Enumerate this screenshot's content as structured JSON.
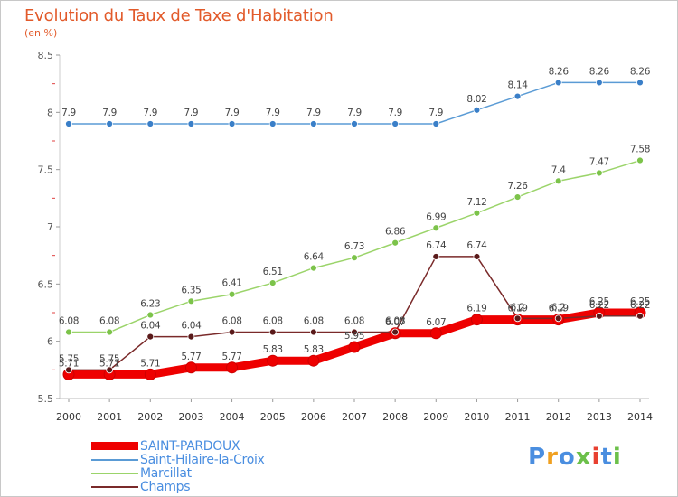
{
  "title": "Evolution du Taux de Taxe d'Habitation",
  "unit_label": "(en %)",
  "logo_text": "Proxiti",
  "colors": {
    "title": "#e25a2a",
    "legend_text": "#4a8ee0",
    "saint_pardoux": "#ee0000",
    "saint_hilaire": "#5a9bd5",
    "marcillat": "#9bd46a",
    "champs": "#7a2a2a"
  },
  "chart_data": {
    "type": "line",
    "title": "Evolution du Taux de Taxe d'Habitation",
    "ylabel": "(en %)",
    "xlabel": "",
    "ylim": [
      5.5,
      8.5
    ],
    "yticks": [
      "5.5",
      "6",
      "6.5",
      "7",
      "7.5",
      "8",
      "8.5"
    ],
    "categories": [
      "2000",
      "2001",
      "2002",
      "2003",
      "2004",
      "2005",
      "2006",
      "2007",
      "2008",
      "2009",
      "2010",
      "2011",
      "2012",
      "2013",
      "2014"
    ],
    "grid": false,
    "legend_position": "bottom-left",
    "series": [
      {
        "name": "SAINT-PARDOUX",
        "values": [
          5.71,
          5.71,
          5.71,
          5.77,
          5.77,
          5.83,
          5.83,
          5.95,
          6.07,
          6.07,
          6.19,
          6.19,
          6.19,
          6.25,
          6.25
        ],
        "labels": [
          "5.71",
          "5.71",
          "5.71",
          "5.77",
          "5.77",
          "5.83",
          "5.83",
          "5.95",
          "6.07",
          "6.07",
          "6.19",
          "6.19",
          "6.19",
          "6.25",
          "6.25"
        ]
      },
      {
        "name": "Saint-Hilaire-la-Croix",
        "values": [
          7.9,
          7.9,
          7.9,
          7.9,
          7.9,
          7.9,
          7.9,
          7.9,
          7.9,
          7.9,
          8.02,
          8.14,
          8.26,
          8.26,
          8.26
        ],
        "labels": [
          "7.9",
          "7.9",
          "7.9",
          "7.9",
          "7.9",
          "7.9",
          "7.9",
          "7.9",
          "7.9",
          "7.9",
          "8.02",
          "8.14",
          "8.26",
          "8.26",
          "8.26"
        ]
      },
      {
        "name": "Marcillat",
        "values": [
          6.08,
          6.08,
          6.23,
          6.35,
          6.41,
          6.51,
          6.64,
          6.73,
          6.86,
          6.99,
          7.12,
          7.26,
          7.4,
          7.47,
          7.58
        ],
        "labels": [
          "6.08",
          "6.08",
          "6.23",
          "6.35",
          "6.41",
          "6.51",
          "6.64",
          "6.73",
          "6.86",
          "6.99",
          "7.12",
          "7.26",
          "7.4",
          "7.47",
          "7.58"
        ]
      },
      {
        "name": "Champs",
        "values": [
          5.75,
          5.75,
          6.04,
          6.04,
          6.08,
          6.08,
          6.08,
          6.08,
          6.08,
          6.74,
          6.74,
          6.2,
          6.2,
          6.22,
          6.22
        ],
        "labels": [
          "5.75",
          "5.75",
          "6.04",
          "6.04",
          "6.08",
          "6.08",
          "6.08",
          "6.08",
          "6.08",
          "6.74",
          "6.74",
          "6.2",
          "6.2",
          "6.22",
          "6.22"
        ]
      }
    ]
  }
}
